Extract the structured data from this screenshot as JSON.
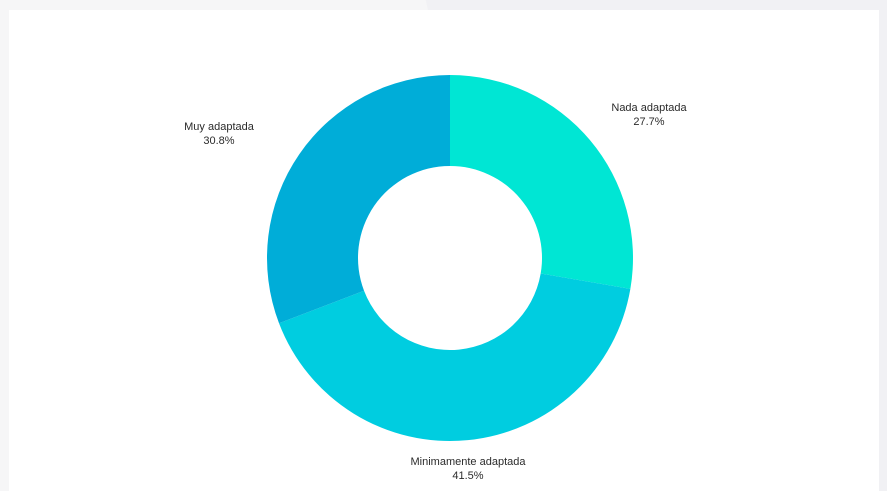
{
  "chart_data": {
    "type": "pie",
    "variant": "donut",
    "title": "",
    "slices": [
      {
        "label": "Nada adaptada",
        "value": 27.7,
        "percent_label": "27.7%",
        "color": "#00e6d4"
      },
      {
        "label": "Minimamente adaptada",
        "value": 41.5,
        "percent_label": "41.5%",
        "color": "#00cde0"
      },
      {
        "label": "Muy adaptada",
        "value": 30.8,
        "percent_label": "30.8%",
        "color": "#00add8"
      }
    ],
    "legend": "none",
    "labels": "outside"
  }
}
